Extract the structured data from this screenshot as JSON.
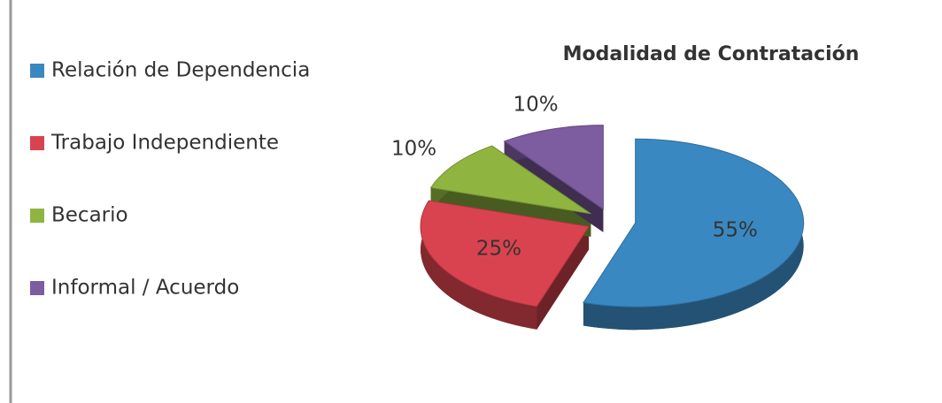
{
  "chart_data": {
    "type": "pie",
    "title": "Modalidad de Contratación",
    "categories": [
      "Relación de Dependencia",
      "Trabajo Independiente",
      "Becario",
      "Informal / Acuerdo"
    ],
    "values": [
      55,
      25,
      10,
      10
    ],
    "value_labels": [
      "55%",
      "25%",
      "10%",
      "10%"
    ],
    "colors": [
      "#3a88c2",
      "#d9434f",
      "#8fb540",
      "#7d5ca0"
    ],
    "legend": "left",
    "exploded": true,
    "three_d": true
  }
}
